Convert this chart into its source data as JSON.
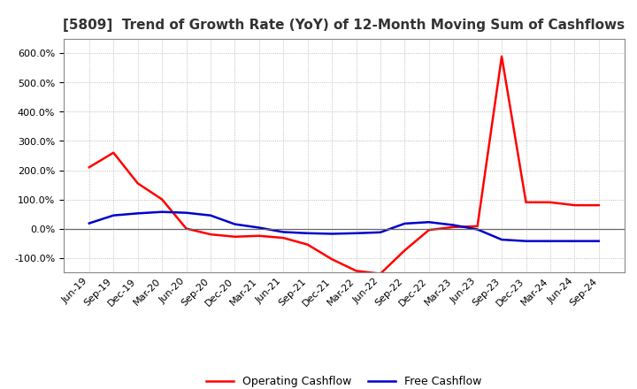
{
  "title": "[5809]  Trend of Growth Rate (YoY) of 12-Month Moving Sum of Cashflows",
  "x_labels": [
    "Jun-19",
    "Sep-19",
    "Dec-19",
    "Mar-20",
    "Jun-20",
    "Sep-20",
    "Dec-20",
    "Mar-21",
    "Jun-21",
    "Sep-21",
    "Dec-21",
    "Mar-22",
    "Jun-22",
    "Sep-22",
    "Dec-22",
    "Mar-23",
    "Jun-23",
    "Sep-23",
    "Dec-23",
    "Mar-24",
    "Jun-24",
    "Sep-24"
  ],
  "operating_cashflow": [
    210,
    260,
    155,
    100,
    0,
    -20,
    -28,
    -25,
    -32,
    -55,
    -105,
    -145,
    -155,
    -75,
    -5,
    5,
    8,
    590,
    90,
    90,
    80,
    80
  ],
  "free_cashflow": [
    18,
    45,
    52,
    57,
    54,
    45,
    15,
    3,
    -12,
    -16,
    -18,
    -16,
    -13,
    17,
    22,
    12,
    -3,
    -38,
    -43,
    -43,
    -43,
    -43
  ],
  "ylim": [
    -150,
    650
  ],
  "yticks": [
    -100,
    0,
    100,
    200,
    300,
    400,
    500,
    600
  ],
  "operating_color": "#ff0000",
  "free_color": "#0000cc",
  "background_color": "#ffffff",
  "grid_color": "#aaaaaa",
  "title_fontsize": 11,
  "tick_fontsize": 8,
  "legend_labels": [
    "Operating Cashflow",
    "Free Cashflow"
  ]
}
